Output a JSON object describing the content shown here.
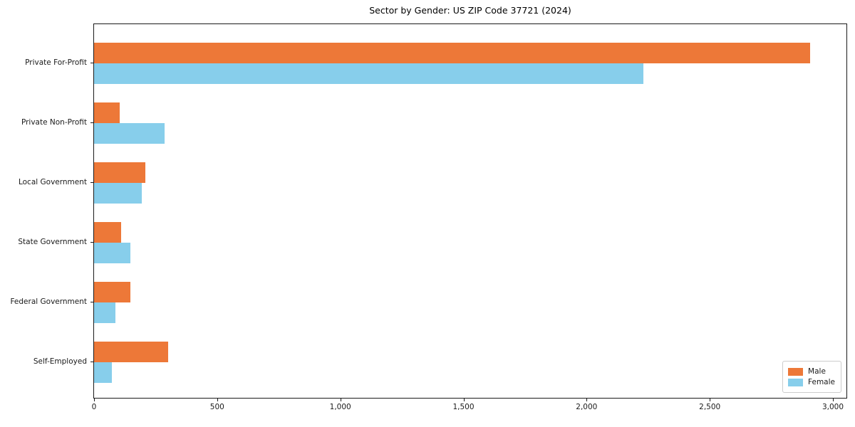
{
  "title": "Sector by Gender: US ZIP Code 37721 (2024)",
  "chart_data": {
    "type": "bar",
    "orientation": "horizontal",
    "title": "Sector by Gender: US ZIP Code 37721 (2024)",
    "categories": [
      "Private For-Profit",
      "Private Non-Profit",
      "Local Government",
      "State Government",
      "Federal Government",
      "Self-Employed"
    ],
    "series": [
      {
        "name": "Male",
        "color": "#ed7838",
        "values": [
          2907,
          103,
          209,
          111,
          147,
          301
        ]
      },
      {
        "name": "Female",
        "color": "#87ceeb",
        "values": [
          2231,
          287,
          195,
          147,
          87,
          72
        ]
      }
    ],
    "xlabel": "",
    "ylabel": "",
    "xlim": [
      0,
      3055
    ],
    "x_ticks": [
      0,
      500,
      1000,
      1500,
      2000,
      2500,
      3000
    ],
    "x_tick_labels": [
      "0",
      "500",
      "1,000",
      "1,500",
      "2,000",
      "2,500",
      "3,000"
    ],
    "grid": false,
    "legend_position": "lower right"
  },
  "legend": {
    "items": [
      {
        "label": "Male",
        "color": "#ed7838"
      },
      {
        "label": "Female",
        "color": "#87ceeb"
      }
    ]
  }
}
